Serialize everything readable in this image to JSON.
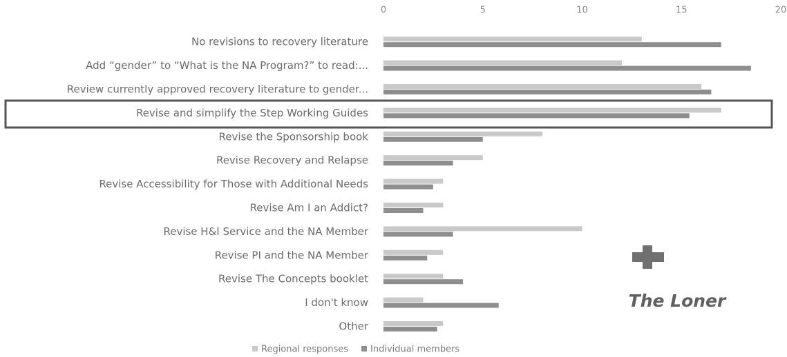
{
  "chart_data": {
    "type": "bar",
    "orientation": "horizontal",
    "categories": [
      "No revisions to recovery literature",
      "Add “gender” to “What is the NA Program?” to read:...",
      "Review currently approved recovery literature to gender...",
      "Revise and simplify the Step Working Guides",
      "Revise the Sponsorship book",
      "Revise Recovery and Relapse",
      "Revise Accessibility for Those with Additional Needs",
      "Revise Am I an Addict?",
      "Revise H&I Service and the NA Member",
      "Revise PI and the NA Member",
      "Revise The Concepts booklet",
      "I don't know",
      "Other"
    ],
    "series": [
      {
        "name": "Regional responses",
        "color": "#c9c9c9",
        "values": [
          13,
          12,
          16,
          17,
          8,
          5,
          3,
          3,
          10,
          3,
          3,
          2,
          3
        ]
      },
      {
        "name": "Individual members",
        "color": "#8e8e8e",
        "values": [
          17,
          18.5,
          16.5,
          15.4,
          5,
          3.5,
          2.5,
          2,
          3.5,
          2.2,
          4,
          5.8,
          2.7
        ]
      }
    ],
    "xlim": [
      0,
      20
    ],
    "xticks": [
      0,
      5,
      10,
      15,
      20
    ],
    "grid": false,
    "legend": "bottom",
    "logo": "The Loner"
  }
}
